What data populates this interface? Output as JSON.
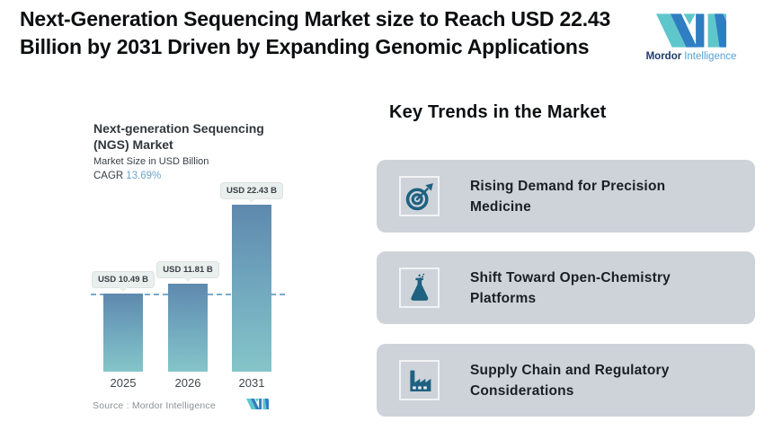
{
  "header": {
    "title": "Next-Generation Sequencing Market size to Reach USD 22.43 Billion by 2031 Driven by Expanding Genomic Applications",
    "brand": {
      "name_bold": "Mordor",
      "name_light": "Intelligence"
    }
  },
  "colors": {
    "brand_teal": "#5ec7cb",
    "brand_blue": "#2f7ec2",
    "trend_icon": "#1e6181",
    "card_background": "#ced3da",
    "bar_gradient_top": "#5e89ad",
    "bar_gradient_bottom": "#84c5c9",
    "dashed_reference": "#79aacd",
    "cagr_value": "#6fa3c8",
    "label_chip_background": "#e9efec"
  },
  "chart_data": {
    "type": "bar",
    "title": "Next-generation Sequencing (NGS) Market",
    "subtitle": "Market Size in USD Billion",
    "cagr_label": "CAGR",
    "cagr_value": "13.69%",
    "categories": [
      "2025",
      "2026",
      "2031"
    ],
    "values": [
      10.49,
      11.81,
      22.43
    ],
    "value_labels": [
      "USD 10.49 B",
      "USD 11.81 B",
      "USD 22.43 B"
    ],
    "ylim": [
      0,
      22.43
    ],
    "reference_line_value": 10.49,
    "grid": false,
    "legend": "none",
    "source": "Source :  Mordor Intelligence"
  },
  "trends": {
    "heading": "Key Trends in the Market",
    "items": [
      {
        "icon": "target-icon",
        "title": "Rising Demand for Precision Medicine"
      },
      {
        "icon": "flask-icon",
        "title": "Shift Toward Open-Chemistry Platforms"
      },
      {
        "icon": "factory-icon",
        "title": "Supply Chain and Regulatory Considerations"
      }
    ]
  }
}
